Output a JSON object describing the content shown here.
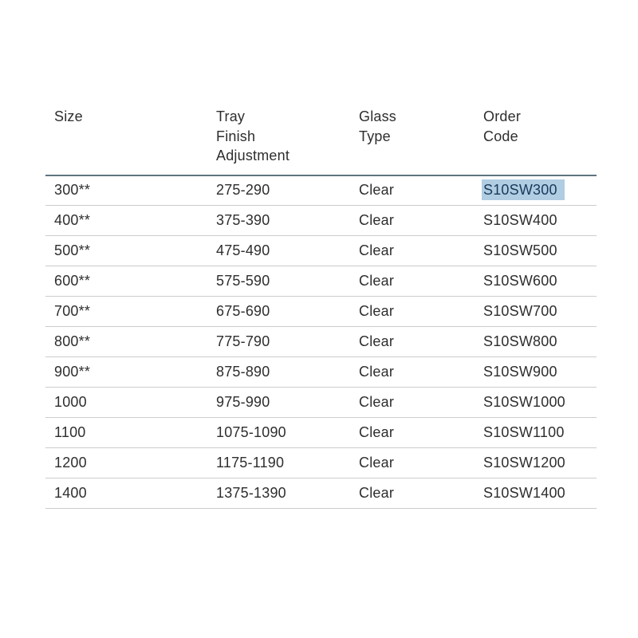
{
  "table": {
    "columns": [
      {
        "field": "size",
        "label": "Size"
      },
      {
        "field": "tray-finish-adjustment",
        "label": "Tray\nFinish\nAdjustment"
      },
      {
        "field": "glass-type",
        "label": "Glass\nType"
      },
      {
        "field": "order-code",
        "label": "Order\nCode"
      }
    ],
    "rows": [
      [
        "300**",
        "275-290",
        "Clear",
        "S10SW300"
      ],
      [
        "400**",
        "375-390",
        "Clear",
        "S10SW400"
      ],
      [
        "500**",
        "475-490",
        "Clear",
        "S10SW500"
      ],
      [
        "600**",
        "575-590",
        "Clear",
        "S10SW600"
      ],
      [
        "700**",
        "675-690",
        "Clear",
        "S10SW700"
      ],
      [
        "800**",
        "775-790",
        "Clear",
        "S10SW800"
      ],
      [
        "900**",
        "875-890",
        "Clear",
        "S10SW900"
      ],
      [
        "1000",
        "975-990",
        "Clear",
        "S10SW1000"
      ],
      [
        "1100",
        "1075-1090",
        "Clear",
        "S10SW1100"
      ],
      [
        "1200",
        "1175-1190",
        "Clear",
        "S10SW1200"
      ],
      [
        "1400",
        "1375-1390",
        "Clear",
        "S10SW1400"
      ]
    ],
    "selection": {
      "row": 0,
      "col": 3,
      "value": "S10SW300"
    },
    "colors": {
      "text": "#2e2e2e",
      "header_divider": "#5e7580",
      "row_divider": "#cccccc",
      "highlight_bg": "#b0cde2",
      "highlight_text": "#1a3a5c",
      "page_bg": "#ffffff"
    }
  }
}
